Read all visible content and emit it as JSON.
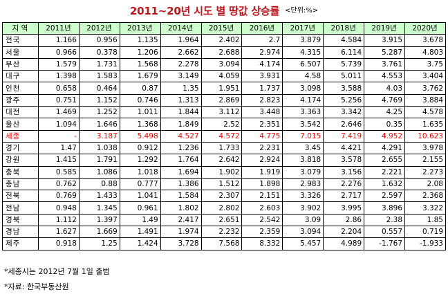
{
  "title": "2011~20년 시도 별 땅값 상승률",
  "unit": "<단위:%>",
  "headers": [
    "지 역",
    "2011년",
    "2012년",
    "2013년",
    "2014년",
    "2015년",
    "2016년",
    "2017년",
    "2018년",
    "2019년",
    "2020년"
  ],
  "rows": [
    {
      "region": "전국",
      "values": [
        "1.166",
        "0.956",
        "1.135",
        "1.964",
        "2.402",
        "2.7",
        "3.879",
        "4.584",
        "3.915",
        "3.678"
      ]
    },
    {
      "region": "서울",
      "values": [
        "0.966",
        "0.378",
        "1.206",
        "2.662",
        "2.688",
        "2.974",
        "4.315",
        "6.114",
        "5.287",
        "4.803"
      ]
    },
    {
      "region": "부산",
      "values": [
        "1.579",
        "1.731",
        "1.568",
        "2.278",
        "3.094",
        "4.174",
        "6.507",
        "5.739",
        "3.761",
        "3.75"
      ]
    },
    {
      "region": "대구",
      "values": [
        "1.398",
        "1.583",
        "1.679",
        "3.149",
        "4.059",
        "3.931",
        "4.58",
        "5.011",
        "4.553",
        "3.404"
      ]
    },
    {
      "region": "인천",
      "values": [
        "0.658",
        "0.464",
        "0.87",
        "1.35",
        "1.951",
        "1.737",
        "3.098",
        "3.588",
        "4.03",
        "3.762"
      ]
    },
    {
      "region": "광주",
      "values": [
        "0.751",
        "1.152",
        "0.746",
        "1.313",
        "2.869",
        "2.823",
        "4.174",
        "5.256",
        "4.769",
        "3.884"
      ]
    },
    {
      "region": "대전",
      "values": [
        "1.469",
        "1.252",
        "1.011",
        "1.844",
        "3.112",
        "3.448",
        "3.363",
        "3.342",
        "4.25",
        "4.578"
      ]
    },
    {
      "region": "울산",
      "values": [
        "1.094",
        "1.646",
        "1.368",
        "1.849",
        "2.52",
        "2.351",
        "3.542",
        "2.646",
        "0.35",
        "1.635"
      ]
    },
    {
      "region": "세종",
      "highlight": true,
      "values": [
        "-",
        "3.187",
        "5.498",
        "4.527",
        "4.572",
        "4.775",
        "7.015",
        "7.419",
        "4.952",
        "10.623"
      ]
    },
    {
      "region": "경기",
      "values": [
        "1.47",
        "1.038",
        "0.912",
        "1.236",
        "1.733",
        "2.231",
        "3.45",
        "4.421",
        "4.291",
        "3.978"
      ]
    },
    {
      "region": "강원",
      "values": [
        "1.415",
        "1.791",
        "1.292",
        "1.764",
        "2.642",
        "2.924",
        "3.818",
        "3.578",
        "2.655",
        "2.155"
      ]
    },
    {
      "region": "충북",
      "values": [
        "0.585",
        "1.086",
        "1.018",
        "1.694",
        "1.902",
        "1.919",
        "3.079",
        "3.156",
        "2.221",
        "2.273"
      ]
    },
    {
      "region": "충남",
      "values": [
        "0.762",
        "0.88",
        "0.777",
        "1.386",
        "1.512",
        "1.898",
        "2.983",
        "2.276",
        "1.632",
        "2.08"
      ]
    },
    {
      "region": "전북",
      "values": [
        "0.769",
        "1.433",
        "1.041",
        "1.584",
        "2.307",
        "2.151",
        "3.326",
        "2.717",
        "2.597",
        "2.368"
      ]
    },
    {
      "region": "전남",
      "values": [
        "0.948",
        "1.345",
        "0.961",
        "1.802",
        "2.802",
        "2.603",
        "3.902",
        "3.995",
        "3.896",
        "3.322"
      ]
    },
    {
      "region": "경북",
      "values": [
        "1.112",
        "1.397",
        "1.49",
        "2.417",
        "2.651",
        "2.542",
        "3.09",
        "2.86",
        "2.38",
        "1.85"
      ]
    },
    {
      "region": "경남",
      "values": [
        "1.627",
        "1.669",
        "1.491",
        "1.974",
        "2.232",
        "2.359",
        "3.094",
        "2.204",
        "0.557",
        "0.719"
      ]
    },
    {
      "region": "제주",
      "values": [
        "0.918",
        "1.25",
        "1.424",
        "3.728",
        "7.568",
        "8.332",
        "5.457",
        "4.989",
        "-1.767",
        "-1.933"
      ]
    }
  ],
  "notes": [
    "*세종시는 2012년 7월 1일 출범",
    "*자료: 한국부동산원"
  ],
  "colors": {
    "title": "#c0141b",
    "header_bg": "#ccffcc",
    "highlight": "#ff0000"
  }
}
